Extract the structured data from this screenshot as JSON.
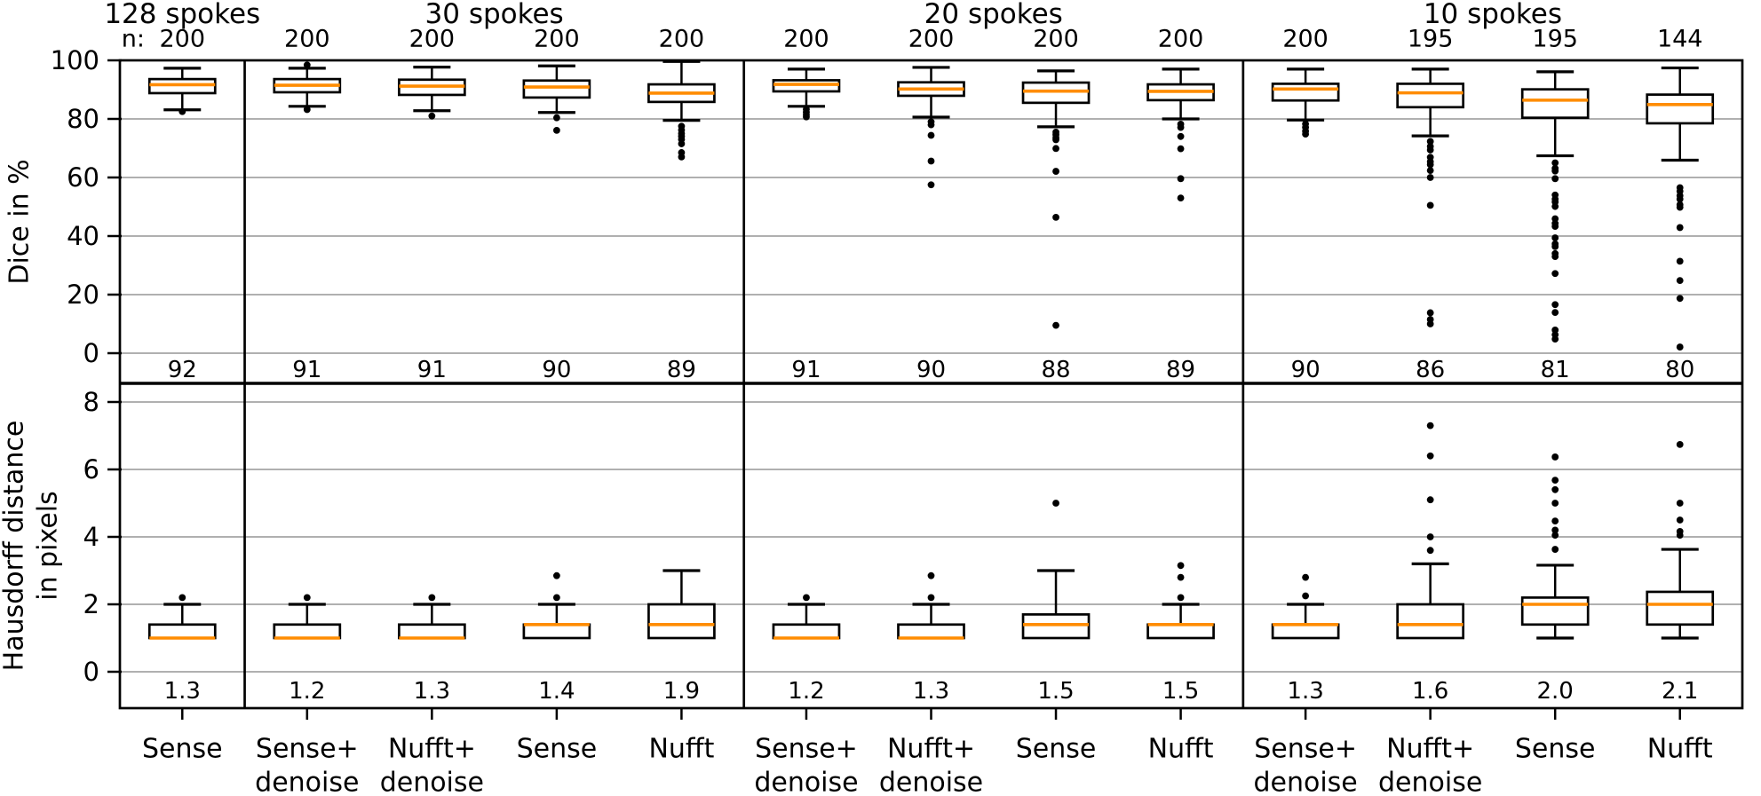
{
  "chart_data": {
    "type": "boxplot",
    "title": "",
    "n_prefix": "n:",
    "colors": {
      "median": "#ff8c00",
      "box_stroke": "#000000",
      "grid": "#b0b0b0",
      "background": "#ffffff"
    },
    "panels": [
      {
        "id": "dice",
        "ylabel_lines": [
          "Dice in %"
        ],
        "yticks": [
          0,
          20,
          40,
          60,
          80,
          100
        ],
        "ylim": [
          -10,
          100
        ],
        "grid": true
      },
      {
        "id": "hd",
        "ylabel_lines": [
          "Hausdorff distance",
          "in pixels"
        ],
        "yticks": [
          0,
          2,
          4,
          6,
          8
        ],
        "ylim": [
          -1.1,
          8.6
        ],
        "grid": true
      }
    ],
    "groups": [
      {
        "title": "128 spokes",
        "boxes": [
          {
            "label_lines": [
              "Sense"
            ],
            "n": "200",
            "dice": {
              "q1": 88.8,
              "median": 91.7,
              "q3": 93.6,
              "whisker_low": 83.1,
              "whisker_high": 97.3,
              "outliers": [
                82.5
              ],
              "note": "92"
            },
            "hd": {
              "q1": 1.0,
              "median": 1.0,
              "q3": 1.4,
              "whisker_low": 1.0,
              "whisker_high": 2.0,
              "outliers": [
                2.2
              ],
              "note": "1.3"
            }
          }
        ]
      },
      {
        "title": "30 spokes",
        "boxes": [
          {
            "label_lines": [
              "Sense+",
              "denoise"
            ],
            "n": "200",
            "dice": {
              "q1": 89.1,
              "median": 91.5,
              "q3": 93.6,
              "whisker_low": 84.3,
              "whisker_high": 97.3,
              "outliers": [
                98.4,
                83.2
              ],
              "note": "91"
            },
            "hd": {
              "q1": 1.0,
              "median": 1.0,
              "q3": 1.4,
              "whisker_low": 1.0,
              "whisker_high": 2.0,
              "outliers": [
                2.2
              ],
              "note": "1.2"
            }
          },
          {
            "label_lines": [
              "Nufft+",
              "denoise"
            ],
            "n": "200",
            "dice": {
              "q1": 88.2,
              "median": 91.2,
              "q3": 93.4,
              "whisker_low": 82.8,
              "whisker_high": 97.7,
              "outliers": [
                81.0
              ],
              "note": "91"
            },
            "hd": {
              "q1": 1.0,
              "median": 1.0,
              "q3": 1.4,
              "whisker_low": 1.0,
              "whisker_high": 2.0,
              "outliers": [
                2.2
              ],
              "note": "1.3"
            }
          },
          {
            "label_lines": [
              "Sense"
            ],
            "n": "200",
            "dice": {
              "q1": 87.3,
              "median": 90.9,
              "q3": 93.1,
              "whisker_low": 82.2,
              "whisker_high": 98.1,
              "outliers": [
                80.4,
                76.1
              ],
              "note": "90"
            },
            "hd": {
              "q1": 1.0,
              "median": 1.4,
              "q3": 1.4,
              "whisker_low": 1.0,
              "whisker_high": 2.0,
              "outliers": [
                2.2,
                2.85
              ],
              "note": "1.4"
            }
          },
          {
            "label_lines": [
              "Nufft"
            ],
            "n": "200",
            "dice": {
              "q1": 85.8,
              "median": 88.8,
              "q3": 91.8,
              "whisker_low": 79.5,
              "whisker_high": 99.6,
              "outliers": [
                77.5,
                76.2,
                75.0,
                74.0,
                73.0,
                71.5,
                68.5,
                67.0
              ],
              "note": "89"
            },
            "hd": {
              "q1": 1.0,
              "median": 1.4,
              "q3": 2.0,
              "whisker_low": 1.0,
              "whisker_high": 3.0,
              "outliers": [],
              "note": "1.9"
            }
          }
        ]
      },
      {
        "title": "20 spokes",
        "boxes": [
          {
            "label_lines": [
              "Sense+",
              "denoise"
            ],
            "n": "200",
            "dice": {
              "q1": 89.4,
              "median": 91.8,
              "q3": 93.2,
              "whisker_low": 84.3,
              "whisker_high": 97.0,
              "outliers": [
                83.3,
                82.3,
                81.4,
                80.7
              ],
              "note": "91"
            },
            "hd": {
              "q1": 1.0,
              "median": 1.0,
              "q3": 1.4,
              "whisker_low": 1.0,
              "whisker_high": 2.0,
              "outliers": [
                2.2
              ],
              "note": "1.2"
            }
          },
          {
            "label_lines": [
              "Nufft+",
              "denoise"
            ],
            "n": "200",
            "dice": {
              "q1": 87.9,
              "median": 90.2,
              "q3": 92.5,
              "whisker_low": 80.6,
              "whisker_high": 97.6,
              "outliers": [
                79.0,
                78.0,
                74.4,
                65.6,
                57.5
              ],
              "note": "90"
            },
            "hd": {
              "q1": 1.0,
              "median": 1.0,
              "q3": 1.4,
              "whisker_low": 1.0,
              "whisker_high": 2.0,
              "outliers": [
                2.2,
                2.85
              ],
              "note": "1.3"
            }
          },
          {
            "label_lines": [
              "Sense"
            ],
            "n": "200",
            "dice": {
              "q1": 85.5,
              "median": 89.5,
              "q3": 92.4,
              "whisker_low": 77.3,
              "whisker_high": 96.4,
              "outliers": [
                75.5,
                74.6,
                73.6,
                72.9,
                69.9,
                62.1,
                46.4,
                9.5
              ],
              "note": "88"
            },
            "hd": {
              "q1": 1.0,
              "median": 1.4,
              "q3": 1.7,
              "whisker_low": 1.0,
              "whisker_high": 3.0,
              "outliers": [
                5.0
              ],
              "note": "1.5"
            }
          },
          {
            "label_lines": [
              "Nufft"
            ],
            "n": "200",
            "dice": {
              "q1": 86.4,
              "median": 89.4,
              "q3": 91.8,
              "whisker_low": 80.0,
              "whisker_high": 97.0,
              "outliers": [
                78.2,
                77.1,
                74.0,
                69.8,
                59.6,
                53.0
              ],
              "note": "89"
            },
            "hd": {
              "q1": 1.0,
              "median": 1.4,
              "q3": 1.4,
              "whisker_low": 1.0,
              "whisker_high": 2.0,
              "outliers": [
                2.2,
                2.8,
                3.15
              ],
              "note": "1.5"
            }
          }
        ]
      },
      {
        "title": "10 spokes",
        "boxes": [
          {
            "label_lines": [
              "Sense+",
              "denoise"
            ],
            "n": "200",
            "dice": {
              "q1": 86.3,
              "median": 90.2,
              "q3": 92.0,
              "whisker_low": 79.6,
              "whisker_high": 97.0,
              "outliers": [
                78.3,
                77.1,
                75.8,
                74.8
              ],
              "note": "90"
            },
            "hd": {
              "q1": 1.0,
              "median": 1.4,
              "q3": 1.4,
              "whisker_low": 1.0,
              "whisker_high": 2.0,
              "outliers": [
                2.25,
                2.8
              ],
              "note": "1.3"
            }
          },
          {
            "label_lines": [
              "Nufft+",
              "denoise"
            ],
            "n": "195",
            "dice": {
              "q1": 84.0,
              "median": 88.9,
              "q3": 92.0,
              "whisker_low": 74.2,
              "whisker_high": 97.0,
              "outliers": [
                72.3,
                70.6,
                69.4,
                66.9,
                65.4,
                64.4,
                62.4,
                60.0,
                50.5,
                13.8,
                11.5,
                10.0
              ],
              "note": "86"
            },
            "hd": {
              "q1": 1.0,
              "median": 1.4,
              "q3": 2.0,
              "whisker_low": 1.0,
              "whisker_high": 3.2,
              "outliers": [
                3.6,
                4.0,
                5.1,
                6.4,
                7.3
              ],
              "note": "1.6"
            }
          },
          {
            "label_lines": [
              "Sense"
            ],
            "n": "195",
            "dice": {
              "q1": 80.4,
              "median": 86.4,
              "q3": 90.1,
              "whisker_low": 67.4,
              "whisker_high": 96.1,
              "outliers": [
                65.0,
                63.1,
                62.2,
                59.6,
                54.0,
                52.6,
                51.6,
                50.1,
                45.9,
                44.3,
                43.3,
                39.4,
                37.3,
                36.4,
                34.0,
                33.0,
                27.2,
                16.6,
                13.9,
                7.9,
                6.3,
                4.8
              ],
              "note": "81"
            },
            "hd": {
              "q1": 1.4,
              "median": 2.0,
              "q3": 2.2,
              "whisker_low": 1.0,
              "whisker_high": 3.16,
              "outliers": [
                3.63,
                4.05,
                4.2,
                4.47,
                5.0,
                5.4,
                5.68,
                6.37
              ],
              "note": "2.0"
            }
          },
          {
            "label_lines": [
              "Nufft"
            ],
            "n": "144",
            "dice": {
              "q1": 78.5,
              "median": 84.9,
              "q3": 88.3,
              "whisker_low": 65.9,
              "whisker_high": 97.4,
              "outliers": [
                56.5,
                55.3,
                53.8,
                52.6,
                50.7,
                49.8,
                42.9,
                31.4,
                24.8,
                18.7,
                2.1
              ],
              "note": "80"
            },
            "hd": {
              "q1": 1.4,
              "median": 2.0,
              "q3": 2.37,
              "whisker_low": 1.0,
              "whisker_high": 3.63,
              "outliers": [
                4.05,
                4.16,
                4.5,
                5.0,
                6.74
              ],
              "note": "2.1"
            }
          }
        ]
      }
    ]
  }
}
